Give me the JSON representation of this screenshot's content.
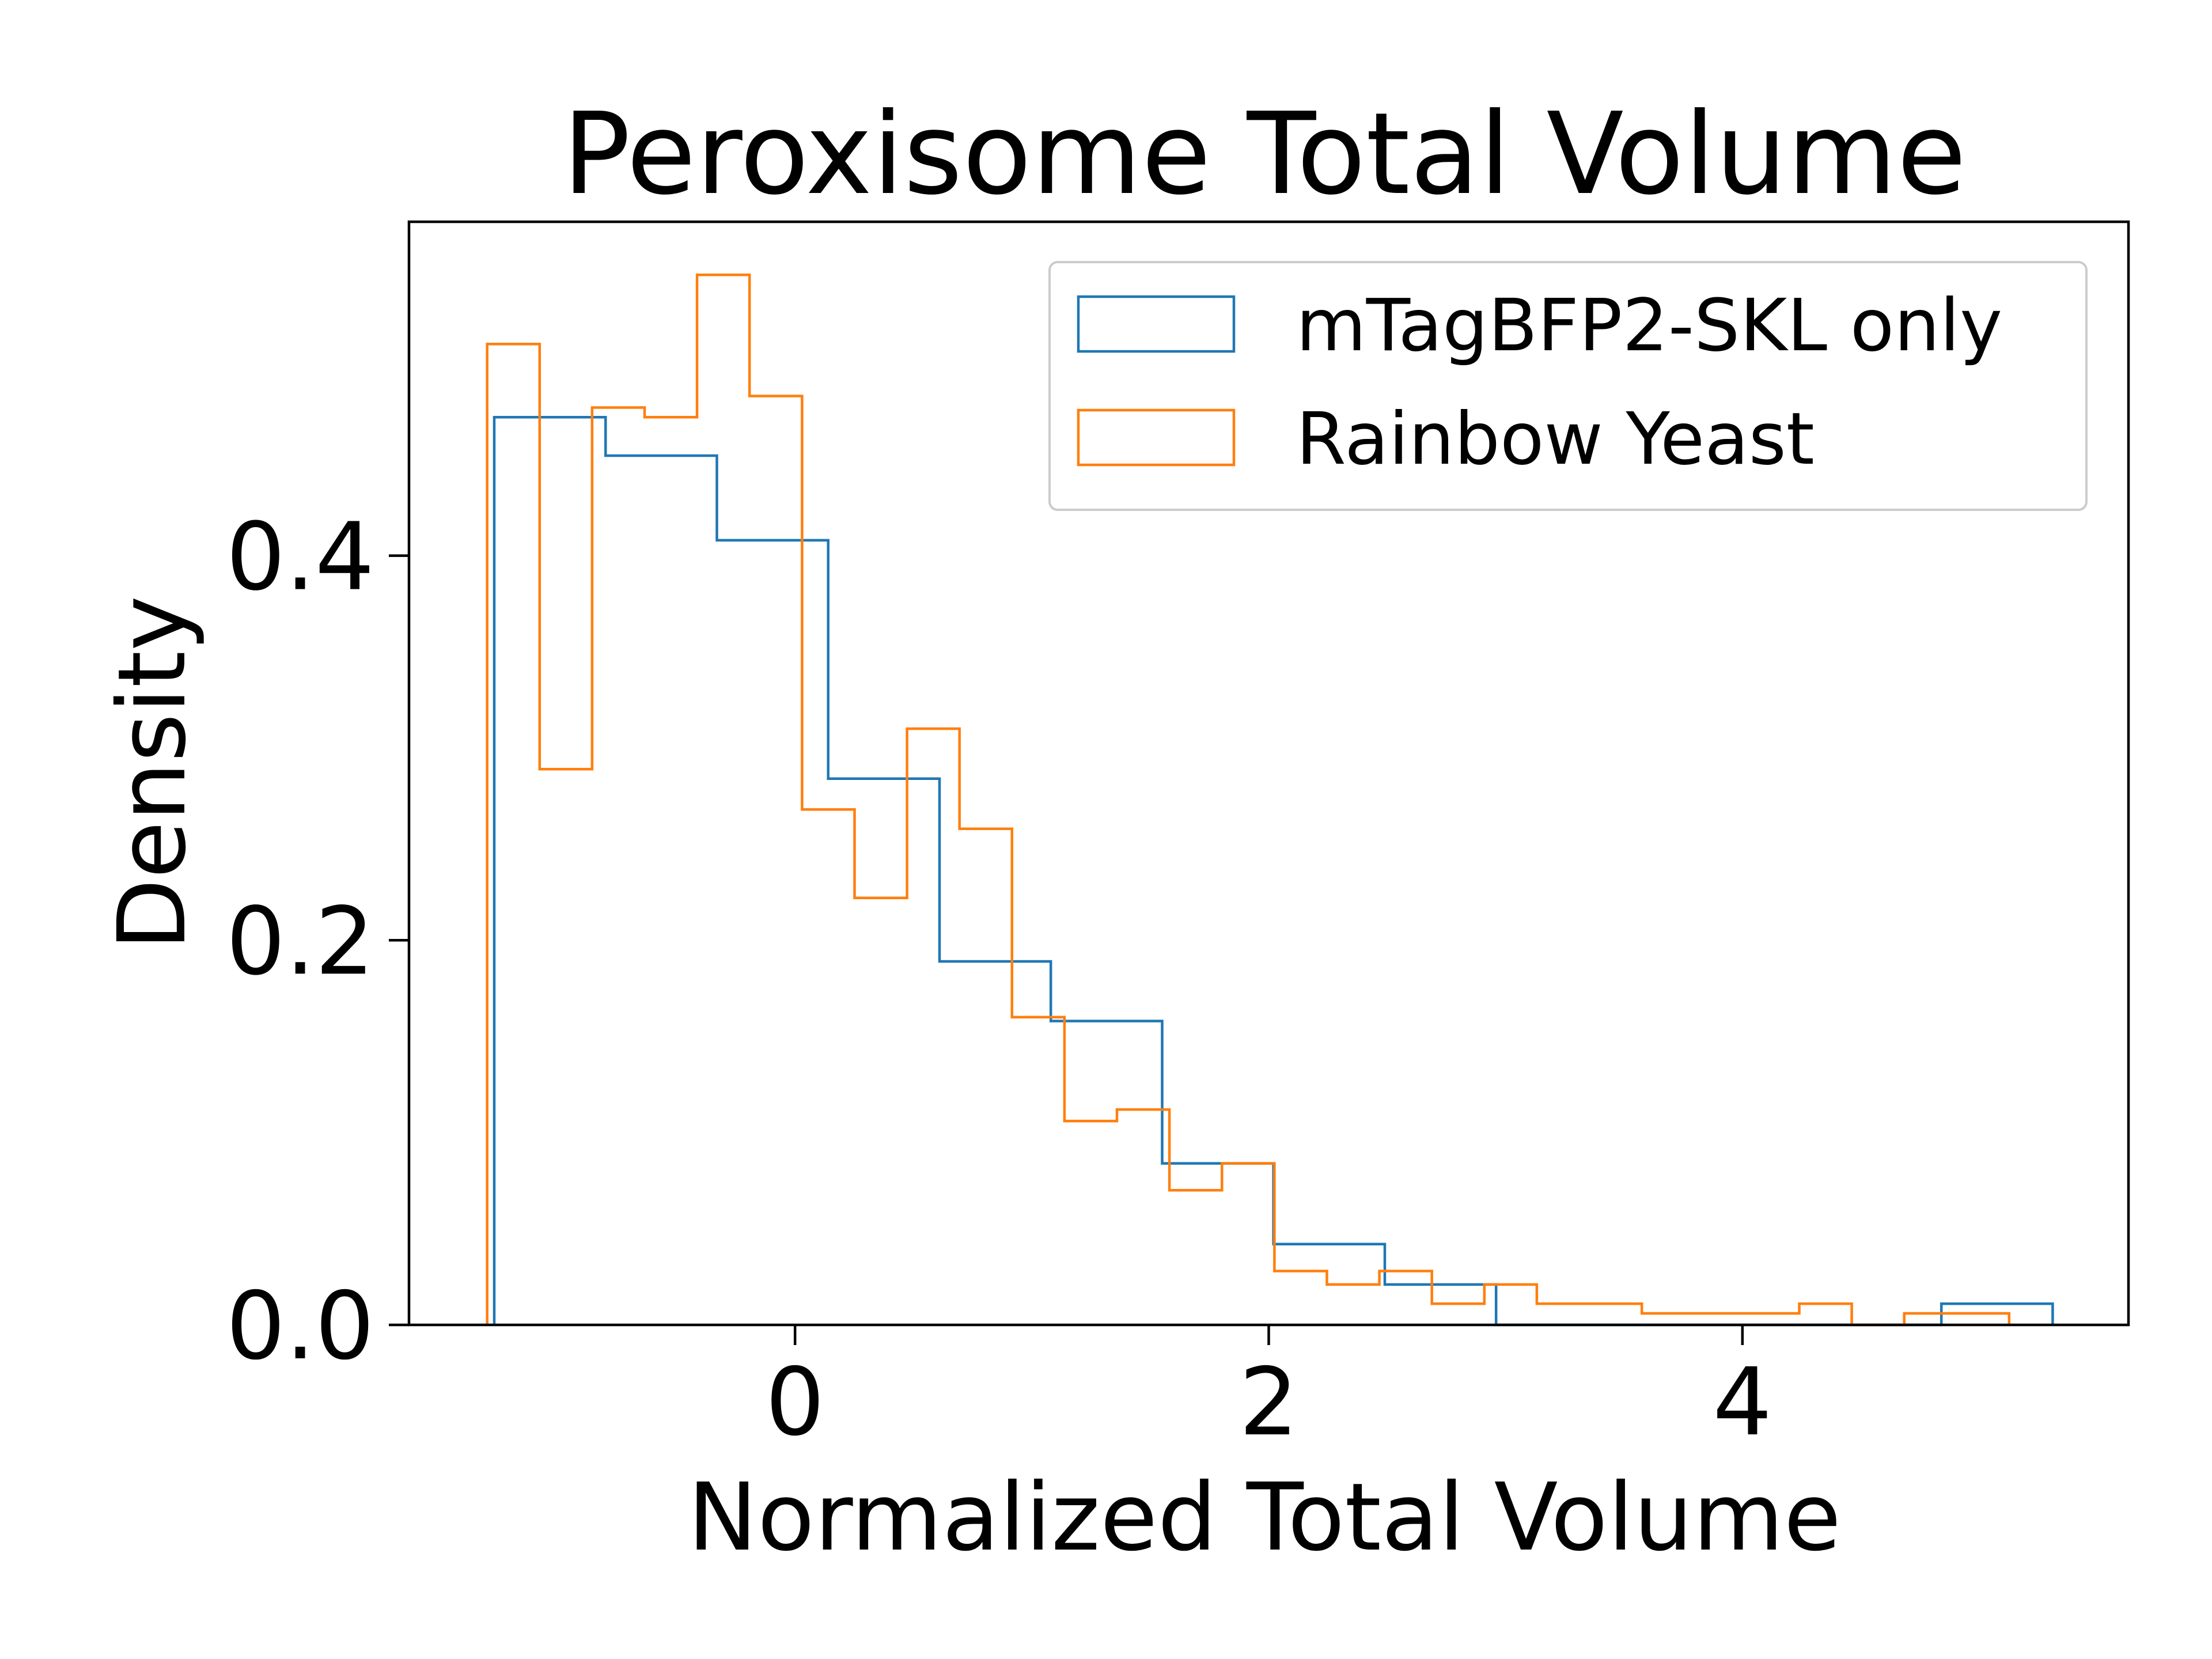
{
  "chart_data": {
    "type": "histogram",
    "title": "Peroxisome Total Volume",
    "xlabel": "Normalized Total Volume",
    "ylabel": "Density",
    "xlim": [
      -1.63,
      5.63
    ],
    "ylim": [
      0,
      0.5736
    ],
    "xticks": [
      0,
      2,
      4
    ],
    "xtick_labels": [
      "0",
      "2",
      "4"
    ],
    "yticks": [
      0.0,
      0.2,
      0.4
    ],
    "ytick_labels": [
      "0.0",
      "0.2",
      "0.4"
    ],
    "grid": false,
    "legend_position": "top-right",
    "histtype": "step",
    "series": [
      {
        "name": "mTagBFP2-SKL only",
        "color": "#1f77b4",
        "bin_edges": [
          -1.27,
          -0.8,
          -0.33,
          0.14,
          0.61,
          1.08,
          1.55,
          2.02,
          2.49,
          2.96,
          3.43,
          3.9,
          4.37,
          4.84,
          5.31
        ],
        "values": [
          0.472,
          0.452,
          0.408,
          0.284,
          0.189,
          0.158,
          0.084,
          0.042,
          0.021,
          0.0,
          0.0,
          0.0,
          0.0,
          0.011
        ]
      },
      {
        "name": "Rainbow Yeast",
        "color": "#ff7f0e",
        "bin_edges": [
          -1.3,
          -1.0784,
          -0.8568,
          -0.6352,
          -0.4136,
          -0.192,
          0.0296,
          0.2512,
          0.4728,
          0.6944,
          0.916,
          1.1376,
          1.3592,
          1.5808,
          1.8024,
          2.024,
          2.2456,
          2.4672,
          2.6888,
          2.9104,
          3.132,
          3.3536,
          3.5752,
          3.7968,
          4.0184,
          4.24,
          4.4616,
          4.6832,
          4.9048,
          5.126
        ],
        "values": [
          0.51,
          0.289,
          0.477,
          0.472,
          0.546,
          0.483,
          0.268,
          0.222,
          0.31,
          0.258,
          0.16,
          0.106,
          0.112,
          0.07,
          0.084,
          0.028,
          0.021,
          0.028,
          0.011,
          0.021,
          0.011,
          0.011,
          0.006,
          0.006,
          0.006,
          0.011,
          0.0,
          0.006,
          0.006
        ]
      }
    ]
  }
}
